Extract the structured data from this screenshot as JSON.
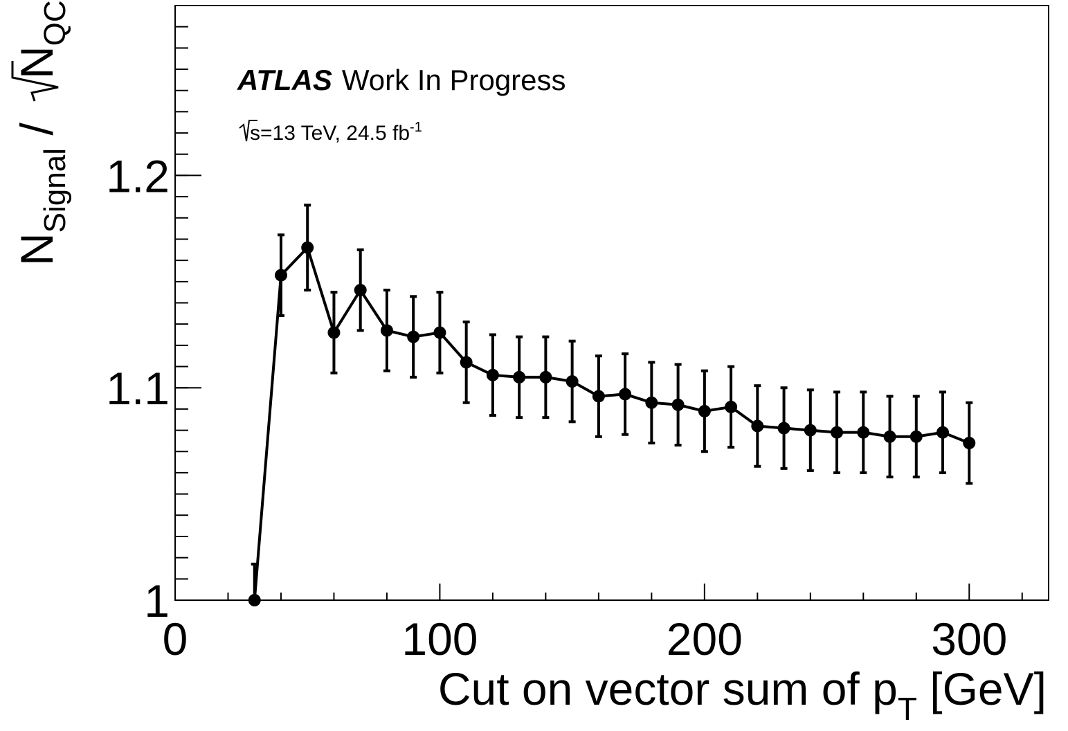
{
  "chart_data": {
    "type": "scatter",
    "style": "markers-with-error-bars-connected-by-line",
    "label": {
      "atlas": "ATLAS",
      "status": "Work In Progress",
      "sqrt_s": "s",
      "energy_lumi": "=13 TeV, 24.5 fb",
      "lumi_exponent": "-1"
    },
    "xlabel": "Cut on vector sum of p",
    "xlabel_sub": "T",
    "xlabel_unit": " [GeV]",
    "ylabel_main": "N",
    "ylabel_sub1": "Signal",
    "ylabel_slash": " / ",
    "ylabel_sub2": "QCD",
    "xlim": [
      0,
      330
    ],
    "ylim": [
      1.0,
      1.28
    ],
    "x_ticks": [
      0,
      100,
      200,
      300
    ],
    "x_tick_labels": [
      "0",
      "100",
      "200",
      "300"
    ],
    "y_ticks": [
      1.0,
      1.1,
      1.2
    ],
    "y_tick_labels": [
      "1",
      "1.1",
      "1.2"
    ],
    "grid": false,
    "series": [
      {
        "x": [
          30,
          40,
          50,
          60,
          70,
          80,
          90,
          100,
          110,
          120,
          130,
          140,
          150,
          160,
          170,
          180,
          190,
          200,
          210,
          220,
          230,
          240,
          250,
          260,
          270,
          280,
          290,
          300
        ],
        "y": [
          1.0,
          1.153,
          1.166,
          1.126,
          1.146,
          1.127,
          1.124,
          1.126,
          1.112,
          1.106,
          1.105,
          1.105,
          1.103,
          1.096,
          1.097,
          1.093,
          1.092,
          1.089,
          1.091,
          1.082,
          1.081,
          1.08,
          1.079,
          1.079,
          1.077,
          1.077,
          1.079,
          1.074
        ],
        "yerr": [
          0.017,
          0.019,
          0.02,
          0.019,
          0.019,
          0.019,
          0.019,
          0.019,
          0.019,
          0.019,
          0.019,
          0.019,
          0.019,
          0.019,
          0.019,
          0.019,
          0.019,
          0.019,
          0.019,
          0.019,
          0.019,
          0.019,
          0.019,
          0.019,
          0.019,
          0.019,
          0.019,
          0.019
        ],
        "color": "#000000"
      }
    ]
  }
}
